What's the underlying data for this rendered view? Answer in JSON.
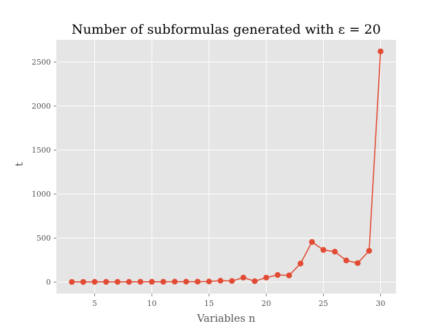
{
  "chart_data": {
    "type": "line",
    "title": "Number of subformulas generated with ε = 20",
    "xlabel": "Variables n",
    "ylabel": "t",
    "xlim": [
      1.65,
      31.35
    ],
    "ylim": [
      -131,
      2751
    ],
    "xticks": [
      5,
      10,
      15,
      20,
      25,
      30
    ],
    "yticks": [
      0,
      500,
      1000,
      1500,
      2000,
      2500
    ],
    "grid": true,
    "background": "#e5e5e5",
    "series": [
      {
        "color": "#e24a33",
        "x": [
          3,
          4,
          5,
          6,
          7,
          8,
          9,
          10,
          11,
          12,
          13,
          14,
          15,
          16,
          17,
          18,
          19,
          20,
          21,
          22,
          23,
          24,
          25,
          26,
          27,
          28,
          29,
          30
        ],
        "y": [
          1,
          1,
          2,
          2,
          2,
          2,
          3,
          3,
          3,
          4,
          4,
          4,
          6,
          15,
          12,
          50,
          10,
          50,
          80,
          75,
          210,
          455,
          365,
          345,
          245,
          215,
          355,
          2620
        ]
      }
    ]
  }
}
